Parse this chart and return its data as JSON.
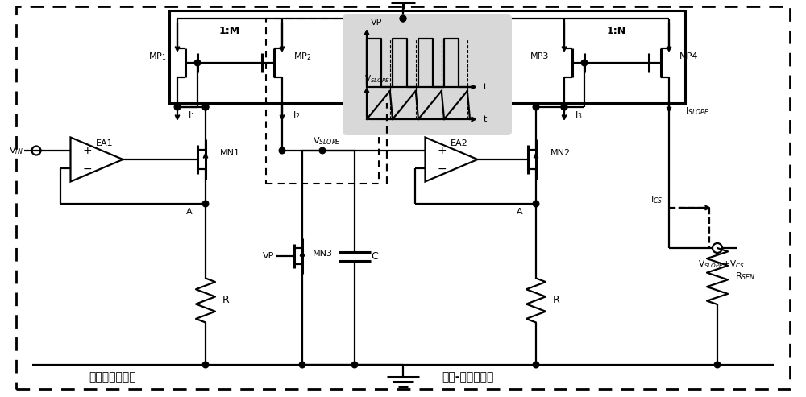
{
  "fig_w": 10.0,
  "fig_h": 4.93,
  "bg": "#ffffff",
  "black": "#000000",
  "gray": "#cccccc",
  "lw": 1.6,
  "lw_thick": 2.2,
  "labels": {
    "MP1": "MP$_1$",
    "MP2": "MP$_2$",
    "MP3": "MP3",
    "MP4": "MP4",
    "MN1": "MN1",
    "MN2": "MN2",
    "MN3": "MN3",
    "EA1": "EA1",
    "EA2": "EA2",
    "ratio_M": "1:M",
    "ratio_N": "1:N",
    "I1": "I$_1$",
    "I2": "I$_2$",
    "I3": "I$_3$",
    "ICS": "I$_{CS}$",
    "ISLOPE": "I$_{SLOPE}$",
    "VIN": "V$_{IN}$",
    "VP": "VP",
    "VSLOPE": "V$_{SLOPE}$",
    "RSEN": "R$_{SEN}$",
    "R": "R",
    "C": "C",
    "A": "A",
    "t": "t",
    "VSLOPE_VCS": "V$_{SLOPE}$+V$_{CS}$",
    "slope_gen": "斜坡电压发生器",
    "vi_conv": "电压-电流转换器"
  }
}
